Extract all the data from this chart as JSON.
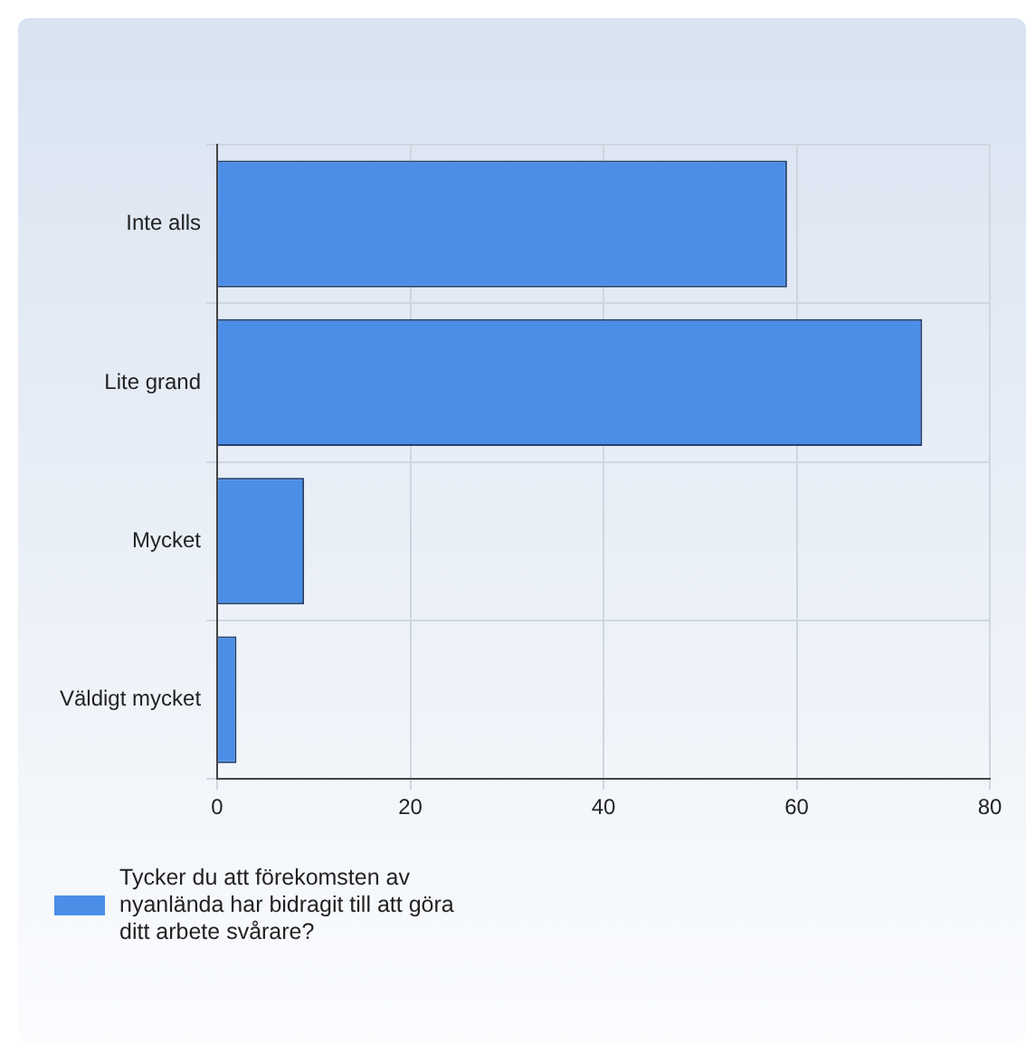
{
  "chart_data": {
    "type": "bar",
    "orientation": "horizontal",
    "categories": [
      "Inte alls",
      "Lite grand",
      "Mycket",
      "Väldigt mycket"
    ],
    "series": [
      {
        "name": "Tycker du att förekomsten av nyanlända har bidragit till att göra ditt arbete svårare?",
        "color": "#4a8ee8",
        "values": [
          59,
          73,
          9,
          2
        ]
      }
    ],
    "xlim": [
      0,
      80
    ],
    "xticks": [
      0,
      20,
      40,
      60,
      80
    ],
    "grid": true,
    "legend": "bottom"
  }
}
